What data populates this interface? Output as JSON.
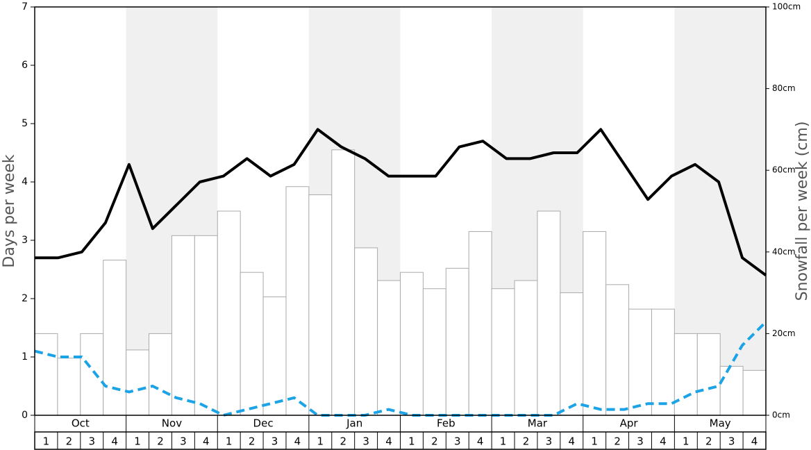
{
  "chart_data": {
    "type": "bar",
    "y_label": "Days per week",
    "y2_label": "Snowfall per week (cm)",
    "months": [
      "Oct",
      "Nov",
      "Dec",
      "Jan",
      "Feb",
      "Mar",
      "Apr",
      "May"
    ],
    "categories": [
      "1",
      "2",
      "3",
      "4",
      "1",
      "2",
      "3",
      "4",
      "1",
      "2",
      "3",
      "4",
      "1",
      "2",
      "3",
      "4",
      "1",
      "2",
      "3",
      "4",
      "1",
      "2",
      "3",
      "4",
      "1",
      "2",
      "3",
      "4",
      "1",
      "2",
      "3",
      "4"
    ],
    "series": [
      {
        "type": "bar",
        "axis": "y2",
        "color": "#ffffff",
        "values": [
          20,
          14,
          20,
          38,
          16,
          20,
          44,
          44,
          50,
          35,
          29,
          56,
          54,
          65,
          41,
          33,
          35,
          31,
          36,
          45,
          31,
          33,
          50,
          30,
          45,
          32,
          26,
          26,
          20,
          20,
          12,
          11
        ]
      },
      {
        "type": "line",
        "color": "#000000",
        "values": [
          2.7,
          2.7,
          2.8,
          3.3,
          4.3,
          3.2,
          3.6,
          4.0,
          4.1,
          4.4,
          4.1,
          4.3,
          4.9,
          4.6,
          4.4,
          4.1,
          4.1,
          4.1,
          4.6,
          4.7,
          4.4,
          4.4,
          4.5,
          4.5,
          4.9,
          4.3,
          3.7,
          4.1,
          4.3,
          4.0,
          2.7,
          2.4
        ]
      },
      {
        "type": "line",
        "dashed": true,
        "color": "#1ba3e6",
        "values": [
          1.1,
          1.0,
          1.0,
          0.5,
          0.4,
          0.5,
          0.3,
          0.2,
          0,
          0.1,
          0.2,
          0.3,
          0,
          0,
          0,
          0.1,
          0,
          0,
          0,
          0,
          0,
          0,
          0,
          0.2,
          0.1,
          0.1,
          0.2,
          0.2,
          0.4,
          0.5,
          1.2,
          1.6
        ]
      }
    ],
    "ylim": [
      0,
      7
    ],
    "yticks": [
      0,
      1,
      2,
      3,
      4,
      5,
      6,
      7
    ],
    "y2lim": [
      0,
      100
    ],
    "y2ticks": [
      {
        "value": 0,
        "label": "0cm"
      },
      {
        "value": 20,
        "label": "20cm"
      },
      {
        "value": 40,
        "label": "40cm"
      },
      {
        "value": 60,
        "label": "60cm"
      },
      {
        "value": 80,
        "label": "80cm"
      },
      {
        "value": 100,
        "label": "100cm"
      }
    ]
  }
}
